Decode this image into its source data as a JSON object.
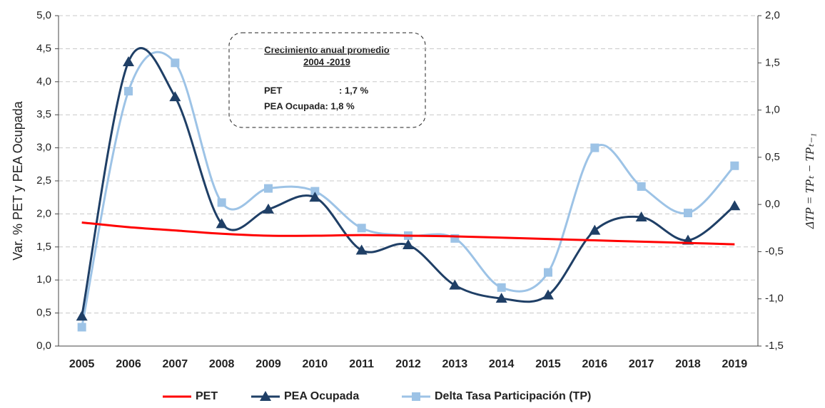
{
  "chart_data": {
    "type": "line",
    "y_label": "Var. % PET y PEA Ocupada",
    "y2_label": "ΔTP = TPₜ − TPₜ₋₁",
    "categories": [
      "2005",
      "2006",
      "2007",
      "2008",
      "2009",
      "2010",
      "2011",
      "2012",
      "2013",
      "2014",
      "2015",
      "2016",
      "2017",
      "2018",
      "2019"
    ],
    "series": [
      {
        "name": "PET",
        "color": "#ff0000",
        "marker": "none",
        "values": [
          1.87,
          1.8,
          1.75,
          1.7,
          1.67,
          1.67,
          1.68,
          1.67,
          1.66,
          1.64,
          1.62,
          1.6,
          1.58,
          1.56,
          1.54
        ]
      },
      {
        "name": "PEA Ocupada",
        "color": "#1f3f66",
        "marker": "triangle",
        "values": [
          0.45,
          4.3,
          3.77,
          1.85,
          2.07,
          2.25,
          1.45,
          1.53,
          0.92,
          0.72,
          0.77,
          1.75,
          1.95,
          1.6,
          2.12
        ]
      },
      {
        "name": "Delta Tasa Participación (TP)",
        "color": "#9dc3e6",
        "marker": "square",
        "axis": "y2",
        "values": [
          -1.3,
          1.2,
          1.5,
          0.02,
          0.17,
          0.14,
          -0.25,
          -0.33,
          -0.36,
          -0.88,
          -0.72,
          0.6,
          0.19,
          -0.09,
          0.41
        ]
      }
    ],
    "ylim": [
      0,
      5
    ],
    "yticks": [
      {
        "value": 0,
        "label": "0,0"
      },
      {
        "value": 0.5,
        "label": "0,5"
      },
      {
        "value": 1,
        "label": "1,0"
      },
      {
        "value": 1.5,
        "label": "1,5"
      },
      {
        "value": 2,
        "label": "2,0"
      },
      {
        "value": 2.5,
        "label": "2,5"
      },
      {
        "value": 3,
        "label": "3,0"
      },
      {
        "value": 3.5,
        "label": "3,5"
      },
      {
        "value": 4,
        "label": "4,0"
      },
      {
        "value": 4.5,
        "label": "4,5"
      },
      {
        "value": 5,
        "label": "5,0"
      }
    ],
    "y2lim": [
      -1.5,
      2
    ],
    "y2ticks": [
      {
        "value": -1.5,
        "label": "-1,5"
      },
      {
        "value": -1,
        "label": "-1,0"
      },
      {
        "value": -0.5,
        "label": "-0,5"
      },
      {
        "value": 0,
        "label": "0,0"
      },
      {
        "value": 0.5,
        "label": "0,5"
      },
      {
        "value": 1,
        "label": "1,0"
      },
      {
        "value": 1.5,
        "label": "1,5"
      },
      {
        "value": 2,
        "label": "2,0"
      }
    ],
    "grid": true,
    "annotation": {
      "title": "Crecimiento anual promedio",
      "subtitle": "2004 -2019",
      "lines": [
        [
          "PET",
          ": 1,7 %"
        ],
        [
          "PEA Ocupada: 1,8 %"
        ]
      ]
    },
    "legend": "bottom"
  }
}
